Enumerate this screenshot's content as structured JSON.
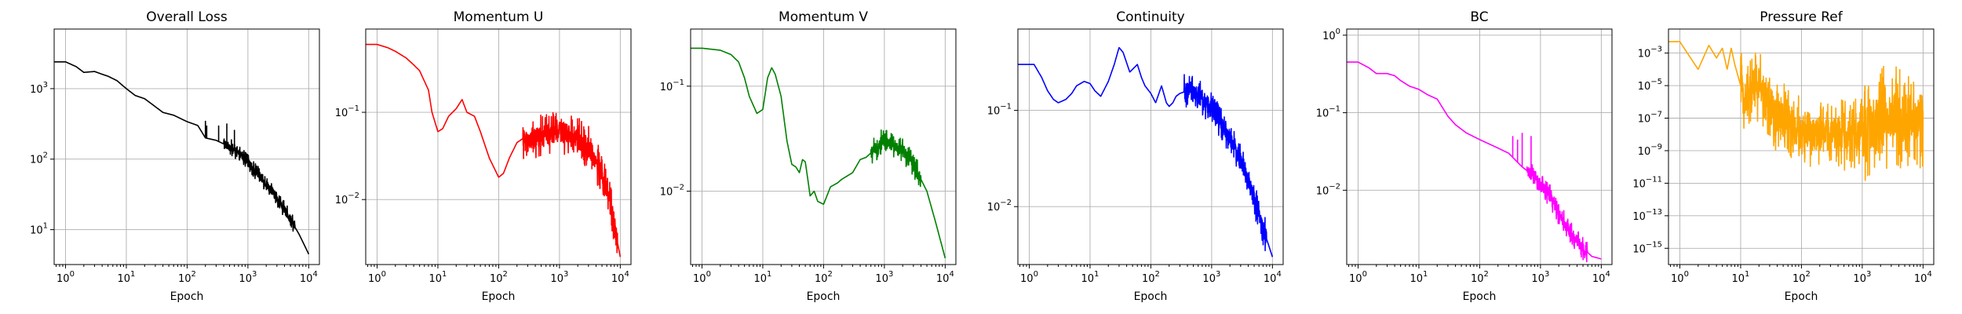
{
  "chart_data": [
    {
      "type": "line",
      "title": "Overall Loss",
      "xlabel": "Epoch",
      "ylabel": "",
      "xscale": "log",
      "yscale": "log",
      "grid": true,
      "color": "#000000",
      "xlim": [
        0.65,
        15000
      ],
      "ylim": [
        3.2,
        7000
      ],
      "xticks": [
        1,
        10,
        100,
        1000,
        10000
      ],
      "xtick_labels": [
        "10^0",
        "10^1",
        "10^2",
        "10^3",
        "10^4"
      ],
      "yticks": [
        10,
        100,
        1000
      ],
      "ytick_labels": [
        "10^1",
        "10^2",
        "10^3"
      ],
      "noise": [
        {
          "from": 400,
          "to": 6000,
          "amp": 0.12
        }
      ],
      "spikes": [
        [
          200,
          350
        ],
        [
          210,
          300
        ],
        [
          330,
          300
        ],
        [
          450,
          320
        ],
        [
          600,
          260
        ]
      ],
      "x": [
        0.65,
        1,
        1.5,
        2,
        3,
        4,
        5,
        7,
        10,
        14,
        20,
        28,
        40,
        60,
        100,
        150,
        200,
        300,
        500,
        800,
        1200,
        2000,
        3000,
        5000,
        7000,
        10000
      ],
      "y": [
        2400,
        2400,
        2050,
        1700,
        1750,
        1600,
        1500,
        1300,
        1000,
        800,
        720,
        580,
        460,
        420,
        340,
        300,
        200,
        185,
        150,
        110,
        75,
        45,
        28,
        14,
        8.5,
        4.5
      ]
    },
    {
      "type": "line",
      "title": "Momentum U",
      "xlabel": "Epoch",
      "ylabel": "",
      "xscale": "log",
      "yscale": "log",
      "grid": true,
      "color": "#ff0000",
      "xlim": [
        0.65,
        15000
      ],
      "ylim": [
        0.0018,
        0.9
      ],
      "xticks": [
        1,
        10,
        100,
        1000,
        10000
      ],
      "xtick_labels": [
        "10^0",
        "10^1",
        "10^2",
        "10^3",
        "10^4"
      ],
      "yticks": [
        0.01,
        0.1
      ],
      "ytick_labels": [
        "10^-2",
        "10^-1"
      ],
      "noise": [
        {
          "from": 250,
          "to": 9000,
          "amp": 0.25
        }
      ],
      "spikes": [],
      "x": [
        0.65,
        1,
        1.5,
        2,
        3,
        4,
        5,
        7,
        8,
        10,
        12,
        15,
        20,
        25,
        30,
        40,
        50,
        70,
        100,
        120,
        150,
        200,
        250,
        300,
        400,
        600,
        1000,
        1500,
        2000,
        3000,
        5000,
        7000,
        10000
      ],
      "y": [
        0.6,
        0.6,
        0.55,
        0.5,
        0.42,
        0.35,
        0.3,
        0.18,
        0.1,
        0.06,
        0.065,
        0.09,
        0.11,
        0.14,
        0.1,
        0.09,
        0.06,
        0.03,
        0.018,
        0.02,
        0.03,
        0.045,
        0.05,
        0.045,
        0.05,
        0.055,
        0.06,
        0.055,
        0.05,
        0.04,
        0.02,
        0.008,
        0.0022
      ]
    },
    {
      "type": "line",
      "title": "Momentum V",
      "xlabel": "Epoch",
      "ylabel": "",
      "xscale": "log",
      "yscale": "log",
      "grid": true,
      "color": "#008000",
      "xlim": [
        0.65,
        15000
      ],
      "ylim": [
        0.002,
        0.35
      ],
      "xticks": [
        1,
        10,
        100,
        1000,
        10000
      ],
      "xtick_labels": [
        "10^0",
        "10^1",
        "10^2",
        "10^3",
        "10^4"
      ],
      "yticks": [
        0.01,
        0.1
      ],
      "ytick_labels": [
        "10^-2",
        "10^-1"
      ],
      "noise": [
        {
          "from": 600,
          "to": 4000,
          "amp": 0.12
        }
      ],
      "spikes": [],
      "x": [
        0.65,
        1,
        2,
        3,
        4,
        5,
        6,
        8,
        10,
        12,
        14,
        16,
        20,
        25,
        30,
        35,
        40,
        45,
        50,
        55,
        60,
        70,
        80,
        100,
        130,
        170,
        200,
        300,
        400,
        500,
        700,
        1000,
        1200,
        1500,
        2000,
        3000,
        5000,
        7000,
        10000
      ],
      "y": [
        0.23,
        0.23,
        0.22,
        0.2,
        0.17,
        0.12,
        0.08,
        0.055,
        0.06,
        0.12,
        0.15,
        0.13,
        0.08,
        0.03,
        0.018,
        0.017,
        0.015,
        0.02,
        0.019,
        0.013,
        0.009,
        0.01,
        0.008,
        0.0075,
        0.011,
        0.012,
        0.013,
        0.015,
        0.02,
        0.021,
        0.025,
        0.032,
        0.028,
        0.027,
        0.025,
        0.018,
        0.01,
        0.005,
        0.0023
      ]
    },
    {
      "type": "line",
      "title": "Continuity",
      "xlabel": "Epoch",
      "ylabel": "",
      "xscale": "log",
      "yscale": "log",
      "grid": true,
      "color": "#0000ff",
      "xlim": [
        0.65,
        15000
      ],
      "ylim": [
        0.0025,
        0.7
      ],
      "xticks": [
        1,
        10,
        100,
        1000,
        10000
      ],
      "xtick_labels": [
        "10^0",
        "10^1",
        "10^2",
        "10^3",
        "10^4"
      ],
      "yticks": [
        0.01,
        0.1
      ],
      "ytick_labels": [
        "10^-2",
        "10^-1"
      ],
      "noise": [
        {
          "from": 350,
          "to": 8000,
          "amp": 0.18
        }
      ],
      "spikes": [],
      "x": [
        0.65,
        1.2,
        1.6,
        2,
        2.5,
        3,
        4,
        5,
        6,
        8,
        10,
        12,
        15,
        20,
        25,
        30,
        35,
        45,
        60,
        70,
        80,
        100,
        120,
        150,
        180,
        200,
        230,
        260,
        300,
        400,
        500,
        700,
        1000,
        1500,
        2000,
        3000,
        5000,
        7000,
        10000
      ],
      "y": [
        0.3,
        0.3,
        0.22,
        0.16,
        0.13,
        0.12,
        0.13,
        0.15,
        0.18,
        0.2,
        0.19,
        0.16,
        0.14,
        0.2,
        0.3,
        0.45,
        0.4,
        0.25,
        0.3,
        0.22,
        0.18,
        0.15,
        0.12,
        0.18,
        0.12,
        0.11,
        0.12,
        0.14,
        0.15,
        0.16,
        0.15,
        0.13,
        0.1,
        0.07,
        0.05,
        0.03,
        0.012,
        0.006,
        0.003
      ]
    },
    {
      "type": "line",
      "title": "BC",
      "xlabel": "Epoch",
      "ylabel": "",
      "xscale": "log",
      "yscale": "log",
      "grid": true,
      "color": "#ff00ff",
      "xlim": [
        0.65,
        15000
      ],
      "ylim": [
        0.0011,
        1.2
      ],
      "xticks": [
        1,
        10,
        100,
        1000,
        10000
      ],
      "xtick_labels": [
        "10^0",
        "10^1",
        "10^2",
        "10^3",
        "10^4"
      ],
      "yticks": [
        0.01,
        0.1,
        1
      ],
      "ytick_labels": [
        "10^-2",
        "10^-1",
        "10^0"
      ],
      "noise": [
        {
          "from": 600,
          "to": 6000,
          "amp": 0.15
        }
      ],
      "spikes": [
        [
          350,
          0.05
        ],
        [
          420,
          0.045
        ],
        [
          500,
          0.055
        ],
        [
          700,
          0.05
        ]
      ],
      "x": [
        0.65,
        1,
        1.5,
        2,
        3,
        4,
        5,
        7,
        10,
        14,
        20,
        30,
        40,
        60,
        100,
        200,
        300,
        500,
        800,
        1000,
        1500,
        2000,
        3000,
        5000,
        7000,
        10000
      ],
      "y": [
        0.45,
        0.45,
        0.38,
        0.32,
        0.32,
        0.3,
        0.26,
        0.22,
        0.2,
        0.17,
        0.15,
        0.09,
        0.07,
        0.055,
        0.045,
        0.035,
        0.03,
        0.02,
        0.015,
        0.012,
        0.008,
        0.005,
        0.003,
        0.0018,
        0.0014,
        0.0013
      ]
    },
    {
      "type": "line",
      "title": "Pressure Ref",
      "xlabel": "Epoch",
      "ylabel": "",
      "xscale": "log",
      "yscale": "log",
      "grid": true,
      "color": "#ffa500",
      "xlim": [
        0.65,
        15000
      ],
      "ylim": [
        1e-16,
        0.03
      ],
      "xticks": [
        1,
        10,
        100,
        1000,
        10000
      ],
      "xtick_labels": [
        "10^0",
        "10^1",
        "10^2",
        "10^3",
        "10^4"
      ],
      "yticks": [
        1e-15,
        1e-13,
        1e-11,
        1e-09,
        1e-07,
        1e-05,
        0.001
      ],
      "ytick_labels": [
        "10^-15",
        "10^-13",
        "10^-11",
        "10^-9",
        "10^-7",
        "10^-5",
        "10^-3"
      ],
      "noise": [
        {
          "from": 10,
          "to": 1000,
          "amp": 2.2
        },
        {
          "from": 1000,
          "to": 12000,
          "amp": 3.2
        }
      ],
      "spikes": [],
      "x": [
        0.65,
        1,
        1.5,
        2,
        3,
        4,
        5,
        6,
        7,
        8,
        10,
        12,
        15,
        20,
        30,
        40,
        60,
        100,
        200,
        400,
        1000,
        2000,
        5000,
        10000
      ],
      "y": [
        0.005,
        0.005,
        0.0005,
        0.0001,
        0.003,
        0.0005,
        0.002,
        0.0001,
        0.002,
        0.0002,
        1e-05,
        1e-06,
        1e-05,
        1e-05,
        1e-06,
        1e-07,
        1e-07,
        1e-08,
        1e-08,
        1e-08,
        1e-08,
        1e-07,
        1e-07,
        1e-07
      ]
    }
  ]
}
